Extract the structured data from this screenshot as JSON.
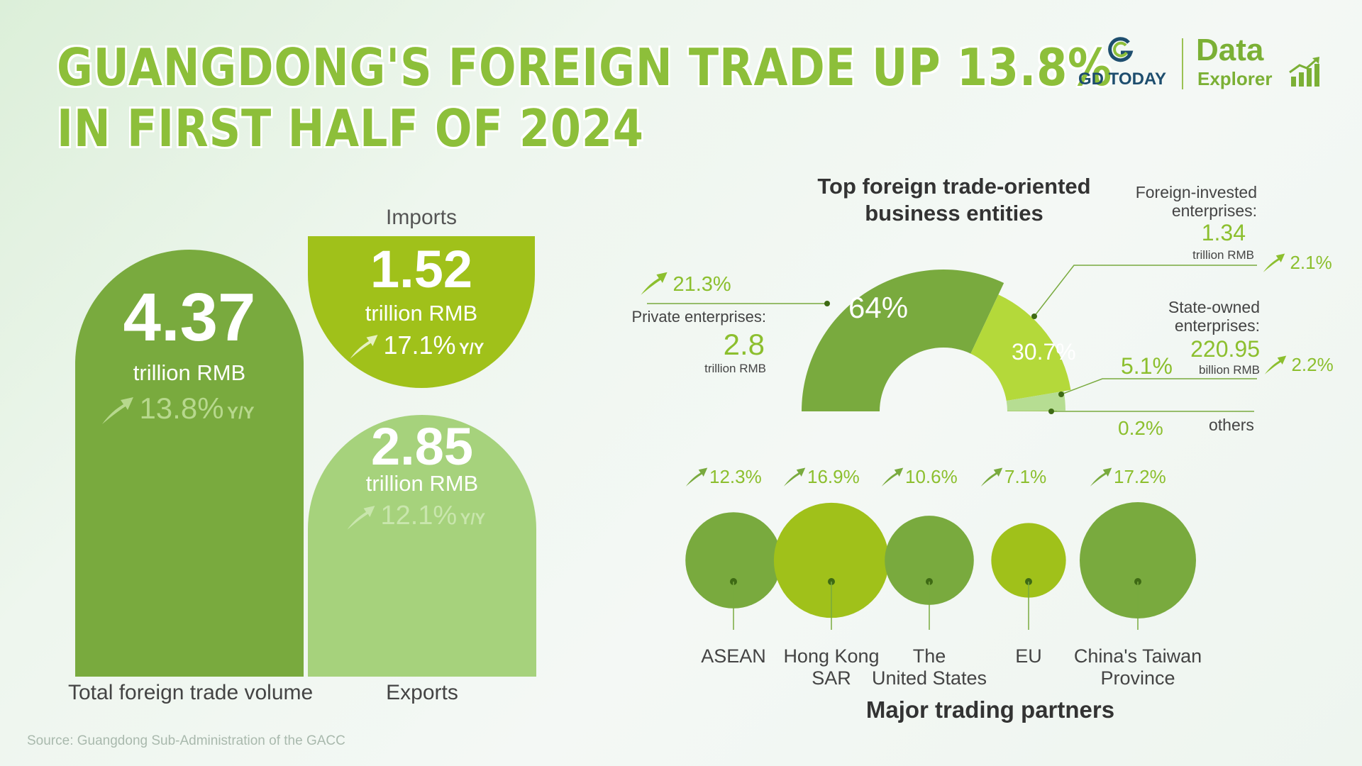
{
  "title": {
    "line1": "GUANGDONG'S FOREIGN TRADE UP 13.8%",
    "line2": "IN FIRST HALF OF 2024"
  },
  "logo": {
    "brand": "GD TODAY",
    "product_top": "Data",
    "product_bottom": "Explorer"
  },
  "colors": {
    "dark_green": "#79aa3e",
    "lime": "#a0c11a",
    "light_green": "#a6d27c",
    "pale_green": "#b6dd92",
    "text": "#444444"
  },
  "chart_data": [
    {
      "type": "bar",
      "categories": [
        "Total foreign trade volume",
        "Imports",
        "Exports"
      ],
      "values": [
        4.37,
        1.52,
        2.85
      ],
      "unit": "trillion RMB",
      "growth": [
        "13.8%",
        "17.1%",
        "12.1%"
      ],
      "growth_suffix": "Y/Y",
      "value_labels": [
        "4.37",
        "1.52",
        "2.85"
      ]
    },
    {
      "type": "pie",
      "title_line1": "Top foreign trade-oriented",
      "title_line2": "business entities",
      "slices": [
        {
          "name_line1": "Private enterprises:",
          "name_line2": "",
          "share": 64,
          "share_label": "64%",
          "value": "2.8",
          "unit": "trillion RMB",
          "growth": "21.3%"
        },
        {
          "name_line1": "Foreign-invested",
          "name_line2": "enterprises:",
          "share": 30.7,
          "share_label": "30.7%",
          "value": "1.34",
          "unit": "trillion RMB",
          "growth": "2.1%"
        },
        {
          "name_line1": "State-owned",
          "name_line2": "enterprises:",
          "share": 5.1,
          "share_label": "5.1%",
          "value": "220.95",
          "unit": "billion RMB",
          "growth": "2.2%"
        },
        {
          "name_line1": "others",
          "name_line2": "",
          "share": 0.2,
          "share_label": "0.2%"
        }
      ]
    },
    {
      "type": "scatter",
      "title": "Major trading partners",
      "partners": [
        {
          "name_line1": "ASEAN",
          "name_line2": "",
          "growth": 12.3,
          "growth_label": "12.3%"
        },
        {
          "name_line1": "Hong Kong",
          "name_line2": "SAR",
          "growth": 16.9,
          "growth_label": "16.9%"
        },
        {
          "name_line1": "The",
          "name_line2": "United States",
          "growth": 10.6,
          "growth_label": "10.6%"
        },
        {
          "name_line1": "EU",
          "name_line2": "",
          "growth": 7.1,
          "growth_label": "7.1%"
        },
        {
          "name_line1": "China's Taiwan",
          "name_line2": "Province",
          "growth": 17.2,
          "growth_label": "17.2%"
        }
      ]
    }
  ],
  "source": "Source: Guangdong Sub-Administration of the GACC"
}
